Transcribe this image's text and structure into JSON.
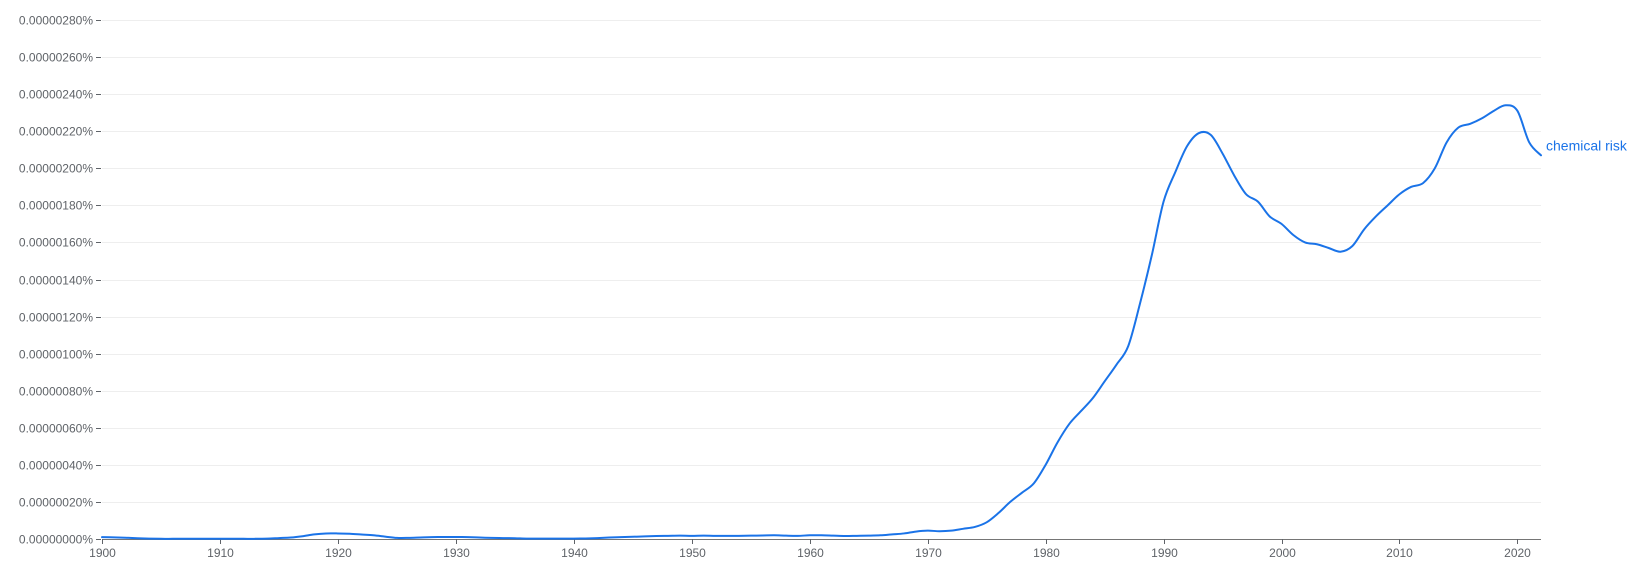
{
  "chart_data": {
    "type": "line",
    "title": "",
    "xlabel": "",
    "ylabel": "",
    "xlim": [
      1900,
      2022
    ],
    "ylim": [
      0,
      2.8e-06
    ],
    "grid": true,
    "y_ticks": [
      {
        "value": 0.0,
        "label": "0.00000000%"
      },
      {
        "value": 2e-07,
        "label": "0.00000020%"
      },
      {
        "value": 4e-07,
        "label": "0.00000040%"
      },
      {
        "value": 6e-07,
        "label": "0.00000060%"
      },
      {
        "value": 8e-07,
        "label": "0.00000080%"
      },
      {
        "value": 1e-06,
        "label": "0.00000100%"
      },
      {
        "value": 1.2e-06,
        "label": "0.00000120%"
      },
      {
        "value": 1.4e-06,
        "label": "0.00000140%"
      },
      {
        "value": 1.6e-06,
        "label": "0.00000160%"
      },
      {
        "value": 1.8e-06,
        "label": "0.00000180%"
      },
      {
        "value": 2e-06,
        "label": "0.00000200%"
      },
      {
        "value": 2.2e-06,
        "label": "0.00000220%"
      },
      {
        "value": 2.4e-06,
        "label": "0.00000240%"
      },
      {
        "value": 2.6e-06,
        "label": "0.00000260%"
      },
      {
        "value": 2.8e-06,
        "label": "0.00000280%"
      }
    ],
    "x_ticks": [
      {
        "value": 1900,
        "label": "1900"
      },
      {
        "value": 1910,
        "label": "1910"
      },
      {
        "value": 1920,
        "label": "1920"
      },
      {
        "value": 1930,
        "label": "1930"
      },
      {
        "value": 1940,
        "label": "1940"
      },
      {
        "value": 1950,
        "label": "1950"
      },
      {
        "value": 1960,
        "label": "1960"
      },
      {
        "value": 1970,
        "label": "1970"
      },
      {
        "value": 1980,
        "label": "1980"
      },
      {
        "value": 1990,
        "label": "1990"
      },
      {
        "value": 2000,
        "label": "2000"
      },
      {
        "value": 2010,
        "label": "2010"
      },
      {
        "value": 2020,
        "label": "2020"
      }
    ],
    "series": [
      {
        "name": "chemical risk",
        "color": "#1a73e8",
        "x": [
          1900,
          1901,
          1902,
          1903,
          1904,
          1905,
          1906,
          1907,
          1908,
          1909,
          1910,
          1911,
          1912,
          1913,
          1914,
          1915,
          1916,
          1917,
          1918,
          1919,
          1920,
          1921,
          1922,
          1923,
          1924,
          1925,
          1926,
          1927,
          1928,
          1929,
          1930,
          1931,
          1932,
          1933,
          1934,
          1935,
          1936,
          1937,
          1938,
          1939,
          1940,
          1941,
          1942,
          1943,
          1944,
          1945,
          1946,
          1947,
          1948,
          1949,
          1950,
          1951,
          1952,
          1953,
          1954,
          1955,
          1956,
          1957,
          1958,
          1959,
          1960,
          1961,
          1962,
          1963,
          1964,
          1965,
          1966,
          1967,
          1968,
          1969,
          1970,
          1971,
          1972,
          1973,
          1974,
          1975,
          1976,
          1977,
          1978,
          1979,
          1980,
          1981,
          1982,
          1983,
          1984,
          1985,
          1986,
          1987,
          1988,
          1989,
          1990,
          1991,
          1992,
          1993,
          1994,
          1995,
          1996,
          1997,
          1998,
          1999,
          2000,
          2001,
          2002,
          2003,
          2004,
          2005,
          2006,
          2007,
          2008,
          2009,
          2010,
          2011,
          2012,
          2013,
          2014,
          2015,
          2016,
          2017,
          2018,
          2019,
          2020,
          2021,
          2022
        ],
        "y": [
          1e-08,
          9e-09,
          7e-09,
          4e-09,
          2e-09,
          1e-09,
          1e-09,
          1e-09,
          1e-09,
          1e-09,
          1e-09,
          1e-09,
          1e-09,
          1e-09,
          2e-09,
          5e-09,
          8e-09,
          1.5e-08,
          2.5e-08,
          3e-08,
          3e-08,
          2.8e-08,
          2.4e-08,
          2e-08,
          1.3e-08,
          6e-09,
          6e-09,
          8e-09,
          1e-08,
          1.1e-08,
          1.1e-08,
          1e-08,
          8e-09,
          6e-09,
          5e-09,
          4e-09,
          2e-09,
          2e-09,
          2e-09,
          2e-09,
          2e-09,
          3e-09,
          5e-09,
          8e-09,
          1e-08,
          1.2e-08,
          1.4e-08,
          1.6e-08,
          1.7e-08,
          1.8e-08,
          1.7e-08,
          1.8e-08,
          1.7e-08,
          1.7e-08,
          1.7e-08,
          1.8e-08,
          1.9e-08,
          2e-08,
          1.8e-08,
          1.7e-08,
          2e-08,
          2e-08,
          1.8e-08,
          1.6e-08,
          1.7e-08,
          1.8e-08,
          2e-08,
          2.5e-08,
          3e-08,
          4e-08,
          4.5e-08,
          4.2e-08,
          4.5e-08,
          5.5e-08,
          6.5e-08,
          9e-08,
          1.4e-07,
          2e-07,
          2.5e-07,
          3e-07,
          4e-07,
          5.2e-07,
          6.2e-07,
          6.9e-07,
          7.6e-07,
          8.5e-07,
          9.4e-07,
          1.04e-06,
          1.27e-06,
          1.53e-06,
          1.82e-06,
          1.98e-06,
          2.12e-06,
          2.19e-06,
          2.18e-06,
          2.08e-06,
          1.96e-06,
          1.86e-06,
          1.82e-06,
          1.74e-06,
          1.7e-06,
          1.64e-06,
          1.6e-06,
          1.59e-06,
          1.57e-06,
          1.55e-06,
          1.58e-06,
          1.67e-06,
          1.74e-06,
          1.8e-06,
          1.86e-06,
          1.9e-06,
          1.92e-06,
          2e-06,
          2.14e-06,
          2.22e-06,
          2.24e-06,
          2.27e-06,
          2.31e-06,
          2.34e-06,
          2.31e-06,
          2.14e-06,
          2.07e-06
        ]
      }
    ]
  }
}
